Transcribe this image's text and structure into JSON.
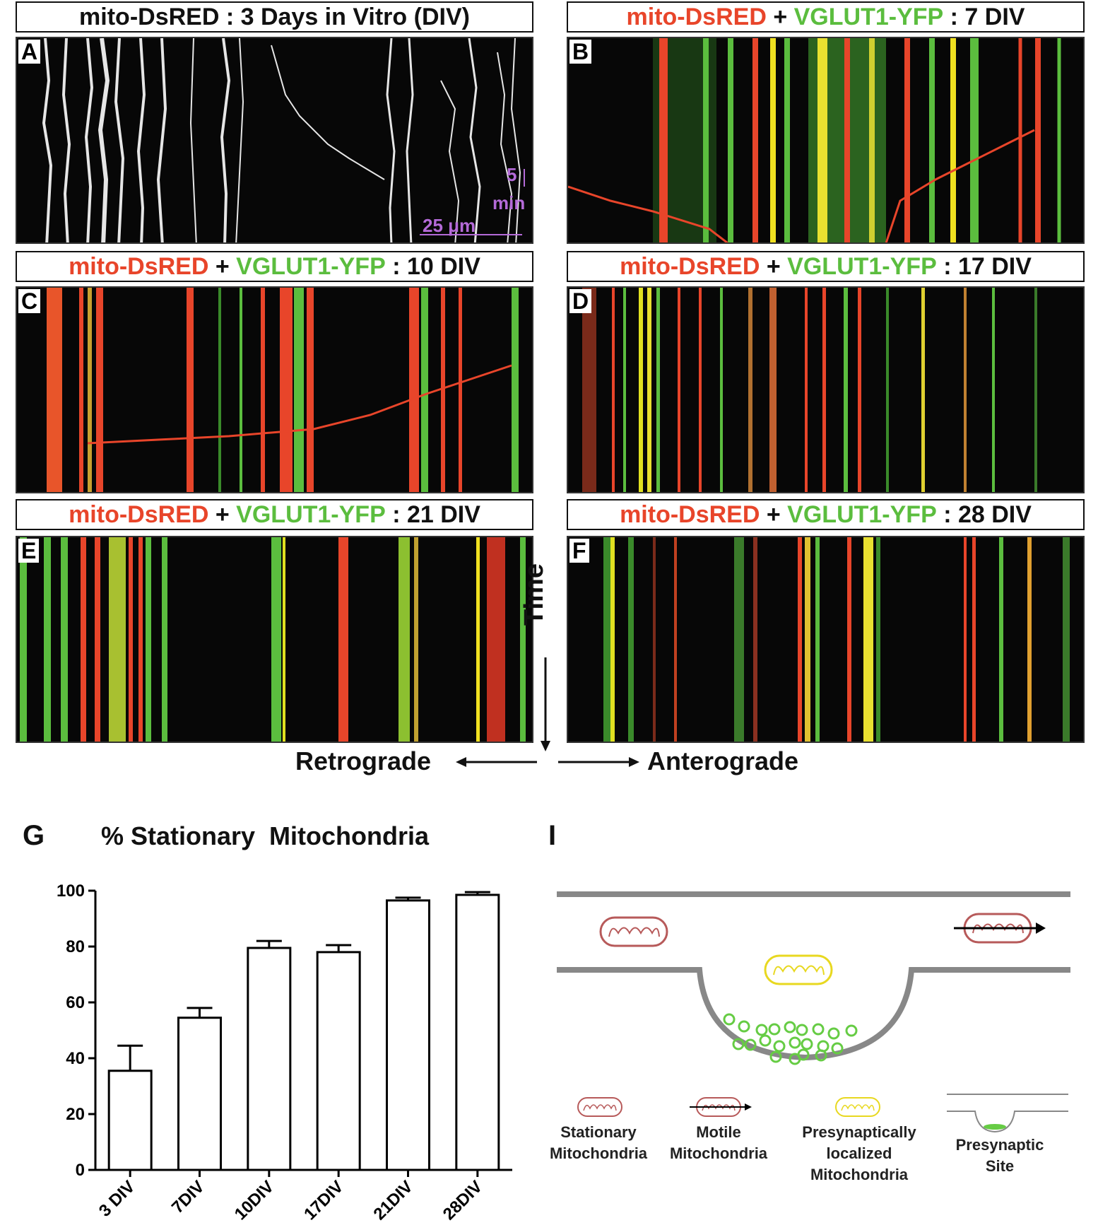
{
  "panels": [
    {
      "letter": "A",
      "title": [
        {
          "t": "mito-DsRED : 3 Days in Vitro (DIV)",
          "c": "black"
        }
      ]
    },
    {
      "letter": "B",
      "title": [
        {
          "t": "mito-DsRED",
          "c": "red"
        },
        {
          "t": " + ",
          "c": "black"
        },
        {
          "t": "VGLUT1-YFP",
          "c": "green"
        },
        {
          "t": " : 7 DIV",
          "c": "black"
        }
      ]
    },
    {
      "letter": "C",
      "title": [
        {
          "t": "mito-DsRED",
          "c": "red"
        },
        {
          "t": " + ",
          "c": "black"
        },
        {
          "t": "VGLUT1-YFP",
          "c": "green"
        },
        {
          "t": " : 10 DIV",
          "c": "black"
        }
      ]
    },
    {
      "letter": "D",
      "title": [
        {
          "t": "mito-DsRED",
          "c": "red"
        },
        {
          "t": " + ",
          "c": "black"
        },
        {
          "t": "VGLUT1-YFP",
          "c": "green"
        },
        {
          "t": " : 17 DIV",
          "c": "black"
        }
      ]
    },
    {
      "letter": "E",
      "title": [
        {
          "t": "mito-DsRED",
          "c": "red"
        },
        {
          "t": " + ",
          "c": "black"
        },
        {
          "t": "VGLUT1-YFP",
          "c": "green"
        },
        {
          "t": " : 21 DIV",
          "c": "black"
        }
      ]
    },
    {
      "letter": "F",
      "title": [
        {
          "t": "mito-DsRED",
          "c": "red"
        },
        {
          "t": " + ",
          "c": "black"
        },
        {
          "t": "VGLUT1-YFP",
          "c": "green"
        },
        {
          "t": " : 28 DIV",
          "c": "black"
        }
      ]
    }
  ],
  "scale": {
    "time": "5",
    "time_unit": "min",
    "length": "25 μm"
  },
  "axes": {
    "time": "Time",
    "retrograde": "Retrograde",
    "anterograde": "Anterograde"
  },
  "colors": {
    "red": "#e8452a",
    "green": "#5bbd3e",
    "yellow": "#f0e020",
    "scale": "#b46ad8"
  },
  "panel_g": {
    "letter": "G",
    "title": "% Stationary  Mitochondria"
  },
  "chart_data": {
    "type": "bar",
    "categories": [
      "3 DIV",
      "7DIV",
      "10DIV",
      "17DIV",
      "21DIV",
      "28DIV"
    ],
    "values": [
      35.5,
      54.5,
      79.5,
      78.0,
      96.5,
      98.5
    ],
    "errors": [
      9.0,
      3.5,
      2.5,
      2.5,
      1.0,
      1.0
    ],
    "title": "% Stationary  Mitochondria",
    "ylim": [
      0,
      100
    ],
    "yticks": [
      0,
      20,
      40,
      60,
      80,
      100
    ],
    "bar_fill": "#ffffff",
    "bar_stroke": "#000000"
  },
  "panel_i": {
    "letter": "I",
    "legend": [
      {
        "label": "Stationary\nMitochondria",
        "icon": "stationary-mitochondrion-icon"
      },
      {
        "label": "Motile\nMitochondria",
        "icon": "motile-mitochondrion-icon"
      },
      {
        "label": "Presynaptically\nlocalized\nMitochondria",
        "icon": "presynaptic-mitochondrion-icon"
      },
      {
        "label": "Presynaptic\nSite",
        "icon": "presynaptic-site-icon"
      }
    ]
  }
}
